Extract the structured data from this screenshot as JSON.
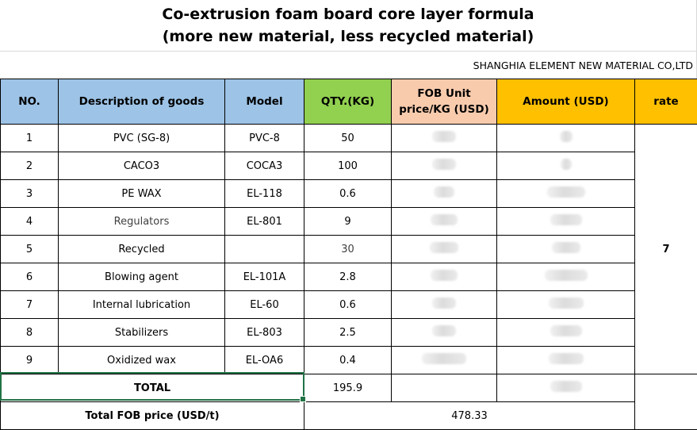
{
  "title": {
    "line1": "Co-extrusion foam board core layer formula",
    "line2": "(more new material, less recycled material)"
  },
  "company": "SHANGHIA  ELEMENT NEW MATERIAL CO,LTD",
  "headers": {
    "no": "NO.",
    "description": "Description of goods",
    "model": "Model",
    "qty": "QTY.(KG)",
    "fob_line1": "FOB Unit",
    "fob_line2": "price/KG (USD)",
    "amount": "Amount  (USD)",
    "rate": "rate"
  },
  "rows": [
    {
      "no": "1",
      "description": "PVC  (SG-8)",
      "model": "PVC-8",
      "qty": "50"
    },
    {
      "no": "2",
      "description": "CACO3",
      "model": "COCA3",
      "qty": "100"
    },
    {
      "no": "3",
      "description": "PE WAX",
      "model": "EL-118",
      "qty": "0.6"
    },
    {
      "no": "4",
      "description": "Regulators",
      "model": "EL-801",
      "qty": "9"
    },
    {
      "no": "5",
      "description": "Recycled",
      "model": "",
      "qty": "30"
    },
    {
      "no": "6",
      "description": "Blowing agent",
      "model": "EL-101A",
      "qty": "2.8"
    },
    {
      "no": "7",
      "description": "Internal lubrication",
      "model": "EL-60",
      "qty": "0.6"
    },
    {
      "no": "8",
      "description": "Stabilizers",
      "model": "EL-803",
      "qty": "2.5"
    },
    {
      "no": "9",
      "description": "Oxidized wax",
      "model": "EL-OA6",
      "qty": "0.4"
    }
  ],
  "rate_value": "7",
  "total": {
    "label": "TOTAL",
    "qty": "195.9"
  },
  "total_fob": {
    "label": "Total FOB price (USD/t)",
    "value": "478.33"
  },
  "colors": {
    "header_blue": "#9dc3e6",
    "header_green": "#92d050",
    "header_peach": "#f8cbad",
    "header_orange": "#ffc000",
    "selection": "#217346"
  }
}
